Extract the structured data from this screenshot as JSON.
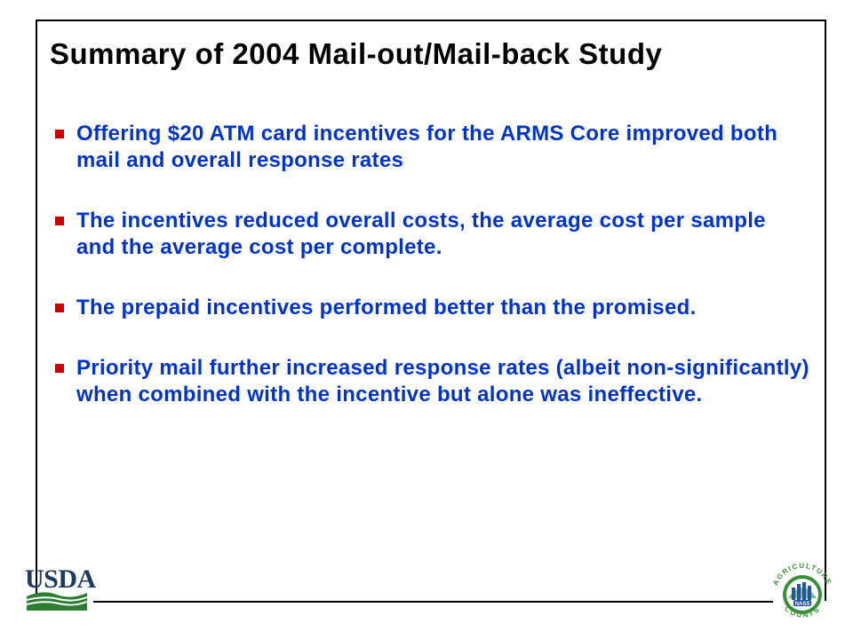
{
  "slide": {
    "title": "Summary of 2004 Mail-out/Mail-back Study",
    "bullets": [
      "Offering $20 ATM card incentives for the ARMS Core improved both mail and overall response rates",
      "The incentives reduced overall costs, the average cost per sample and the average cost per complete.",
      "The prepaid incentives performed better than the promised.",
      "Priority mail further increased response rates (albeit non-significantly) when combined with the incentive but alone was ineffective."
    ]
  },
  "logos": {
    "usda_text": "USDA",
    "nass_top": "AGRICULTURE",
    "nass_bottom": "COUNTS",
    "nass_center": "NASS"
  },
  "colors": {
    "title": "#000000",
    "bullet_text": "#0033cc",
    "bullet_marker": "#cc0000",
    "usda_blue": "#1f3a5f",
    "usda_green": "#2e7d32",
    "nass_green": "#3a8f3a",
    "nass_blue": "#2255aa"
  },
  "icons": {
    "bullet_marker": "square-bullet-icon",
    "usda_logo": "usda-logo-icon",
    "nass_logo": "agriculture-counts-logo-icon"
  }
}
